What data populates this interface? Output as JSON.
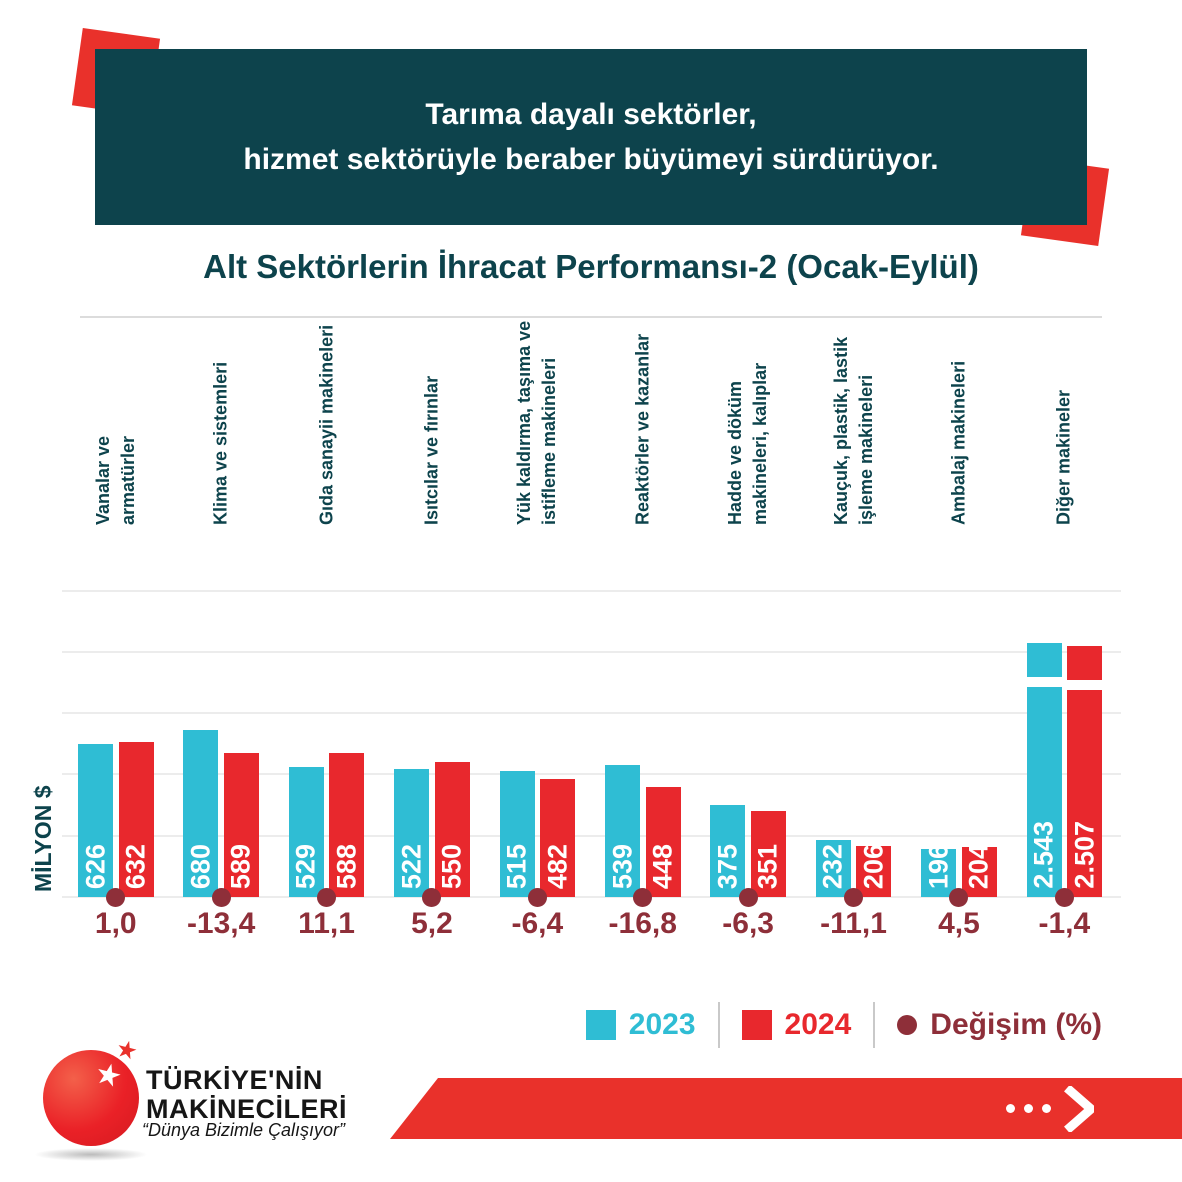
{
  "header": {
    "line1": "Tarıma dayalı sektörler,",
    "line2": "hizmet sektörüyle beraber büyümeyi sürdürüyor."
  },
  "chart_data": {
    "type": "bar",
    "title": "Alt Sektörlerin İhracat Performansı-2 (Ocak-Eylül)",
    "ylabel": "MİLYON $",
    "period": "Ocak-Eylül",
    "grid": true,
    "legend_position": "bottom-right",
    "categories": [
      [
        "Vanalar ve",
        "armatürler"
      ],
      [
        "Klima ve sistemleri"
      ],
      [
        "Gıda sanayii makineleri"
      ],
      [
        "Isıtcılar ve fırınlar"
      ],
      [
        "Yük kaldırma, taşıma ve",
        "istifleme makineleri"
      ],
      [
        "Reaktörler ve kazanlar"
      ],
      [
        "Hadde ve döküm",
        "makineleri, kalıplar"
      ],
      [
        "Kauçuk, plastik, lastik",
        "işleme makineleri"
      ],
      [
        "Ambalaj makineleri"
      ],
      [
        "Diğer makineler"
      ]
    ],
    "series": [
      {
        "name": "2023",
        "color": "#2fbdd4",
        "values": [
          626,
          680,
          529,
          522,
          515,
          539,
          375,
          232,
          196,
          2543
        ],
        "labels": [
          "626",
          "680",
          "529",
          "522",
          "515",
          "539",
          "375",
          "232",
          "196",
          "2.543"
        ]
      },
      {
        "name": "2024",
        "color": "#e8282d",
        "values": [
          632,
          589,
          588,
          550,
          482,
          448,
          351,
          206,
          204,
          2507
        ],
        "labels": [
          "632",
          "589",
          "588",
          "550",
          "482",
          "448",
          "351",
          "206",
          "204",
          "2.507"
        ]
      }
    ],
    "change": {
      "name": "Değişim (%)",
      "color": "#8e2f39",
      "values": [
        "1,0",
        "-13,4",
        "11,1",
        "5,2",
        "-6,4",
        "-16,8",
        "-6,3",
        "-11,1",
        "4,5",
        "-1,4"
      ]
    },
    "axis": {
      "ymin": 0,
      "ymax_displayed": 1250,
      "gridline_step": 250,
      "broken_bars_above": 1250
    }
  },
  "footer": {
    "logo_line1": "TÜRKİYE'NİN",
    "logo_line2": "MAKİNECİLERİ",
    "logo_tagline": "“Dünya Bizimle Çalışıyor”"
  },
  "icons": {
    "star": "★"
  },
  "colors": {
    "teal": "#0d434c",
    "red": "#e9312b",
    "cyan_2023": "#2fbdd4",
    "red_2024": "#e8282d",
    "dark_red_change": "#8e2f39",
    "gridline": "#ececec"
  }
}
